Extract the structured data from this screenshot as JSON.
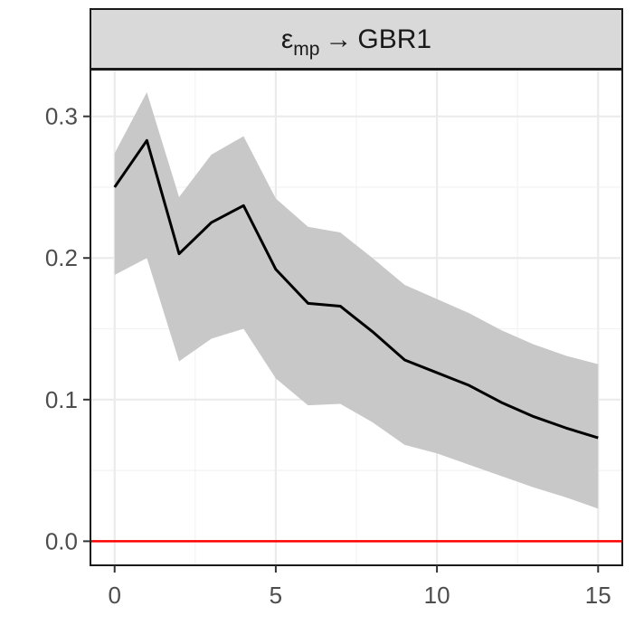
{
  "chart_data": {
    "type": "line",
    "facet_label": {
      "symbol": "ε",
      "subscript": "mp",
      "arrow": "→",
      "target": "GBR1"
    },
    "x": [
      0,
      1,
      2,
      3,
      4,
      5,
      6,
      7,
      8,
      9,
      10,
      11,
      12,
      13,
      14,
      15
    ],
    "series": [
      {
        "type": "line",
        "color": "#000000",
        "values": [
          0.25,
          0.283,
          0.203,
          0.225,
          0.237,
          0.192,
          0.168,
          0.166,
          0.148,
          0.128,
          0.119,
          0.11,
          0.098,
          0.088,
          0.08,
          0.073
        ]
      }
    ],
    "band": {
      "fill": "#c8c8c8",
      "lower": [
        0.188,
        0.2,
        0.127,
        0.143,
        0.15,
        0.115,
        0.096,
        0.097,
        0.084,
        0.068,
        0.062,
        0.054,
        0.046,
        0.038,
        0.031,
        0.023
      ],
      "upper": [
        0.274,
        0.317,
        0.243,
        0.273,
        0.286,
        0.242,
        0.222,
        0.218,
        0.2,
        0.181,
        0.171,
        0.161,
        0.149,
        0.139,
        0.131,
        0.125
      ]
    },
    "reference_line": {
      "y": 0.0,
      "color": "#ff0000"
    },
    "xlim": [
      -0.75,
      15.75
    ],
    "ylim": [
      -0.017,
      0.333
    ],
    "x_ticks": [
      "0",
      "5",
      "10",
      "15"
    ],
    "y_ticks": [
      "0.0",
      "0.1",
      "0.2",
      "0.3"
    ],
    "grid": true,
    "title": "",
    "xlabel": "",
    "ylabel": ""
  }
}
